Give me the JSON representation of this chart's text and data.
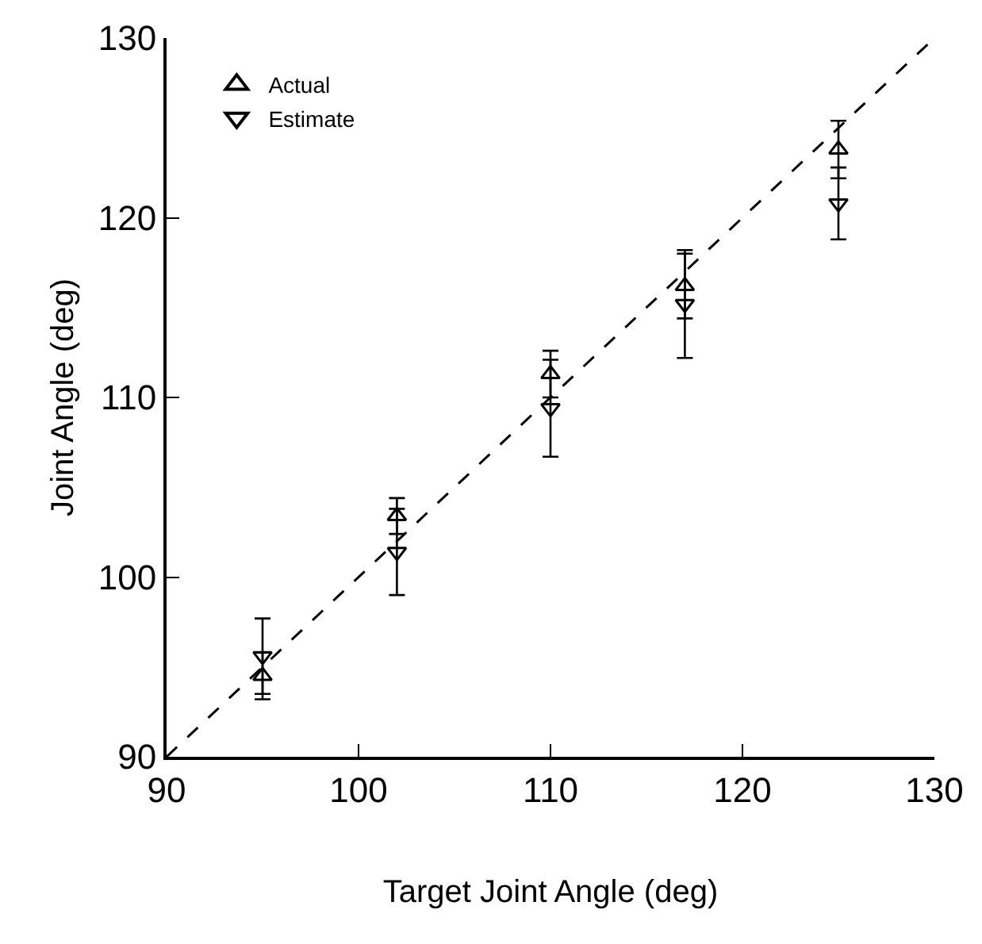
{
  "chart_data": {
    "type": "scatter",
    "xlabel": "Target Joint Angle (deg)",
    "ylabel": "Joint Angle (deg)",
    "xlim": [
      90,
      130
    ],
    "xticks": [
      90,
      100,
      110,
      120,
      130
    ],
    "ylim": [
      90,
      130
    ],
    "yticks": [
      90,
      100,
      110,
      120,
      130
    ],
    "legend": "top left",
    "series": [
      {
        "name": "Actual",
        "color": "#000000",
        "marker": "triangle-up",
        "x": [
          95,
          102,
          110,
          117,
          125
        ],
        "values": [
          94.5,
          103.4,
          111.3,
          116.2,
          123.8
        ],
        "errors": [
          1.3,
          1.0,
          1.3,
          1.8,
          1.6
        ]
      },
      {
        "name": "Estimate",
        "color": "#000000",
        "marker": "triangle-down",
        "x": [
          95,
          102,
          110,
          117,
          125
        ],
        "values": [
          95.6,
          101.4,
          109.4,
          115.2,
          120.8
        ],
        "errors": [
          2.1,
          2.4,
          2.7,
          3.0,
          2.0
        ]
      },
      {
        "type": "line",
        "color": "#000000",
        "line_style": "dashed",
        "x": [
          90,
          130
        ],
        "values": [
          90,
          130
        ]
      }
    ]
  }
}
